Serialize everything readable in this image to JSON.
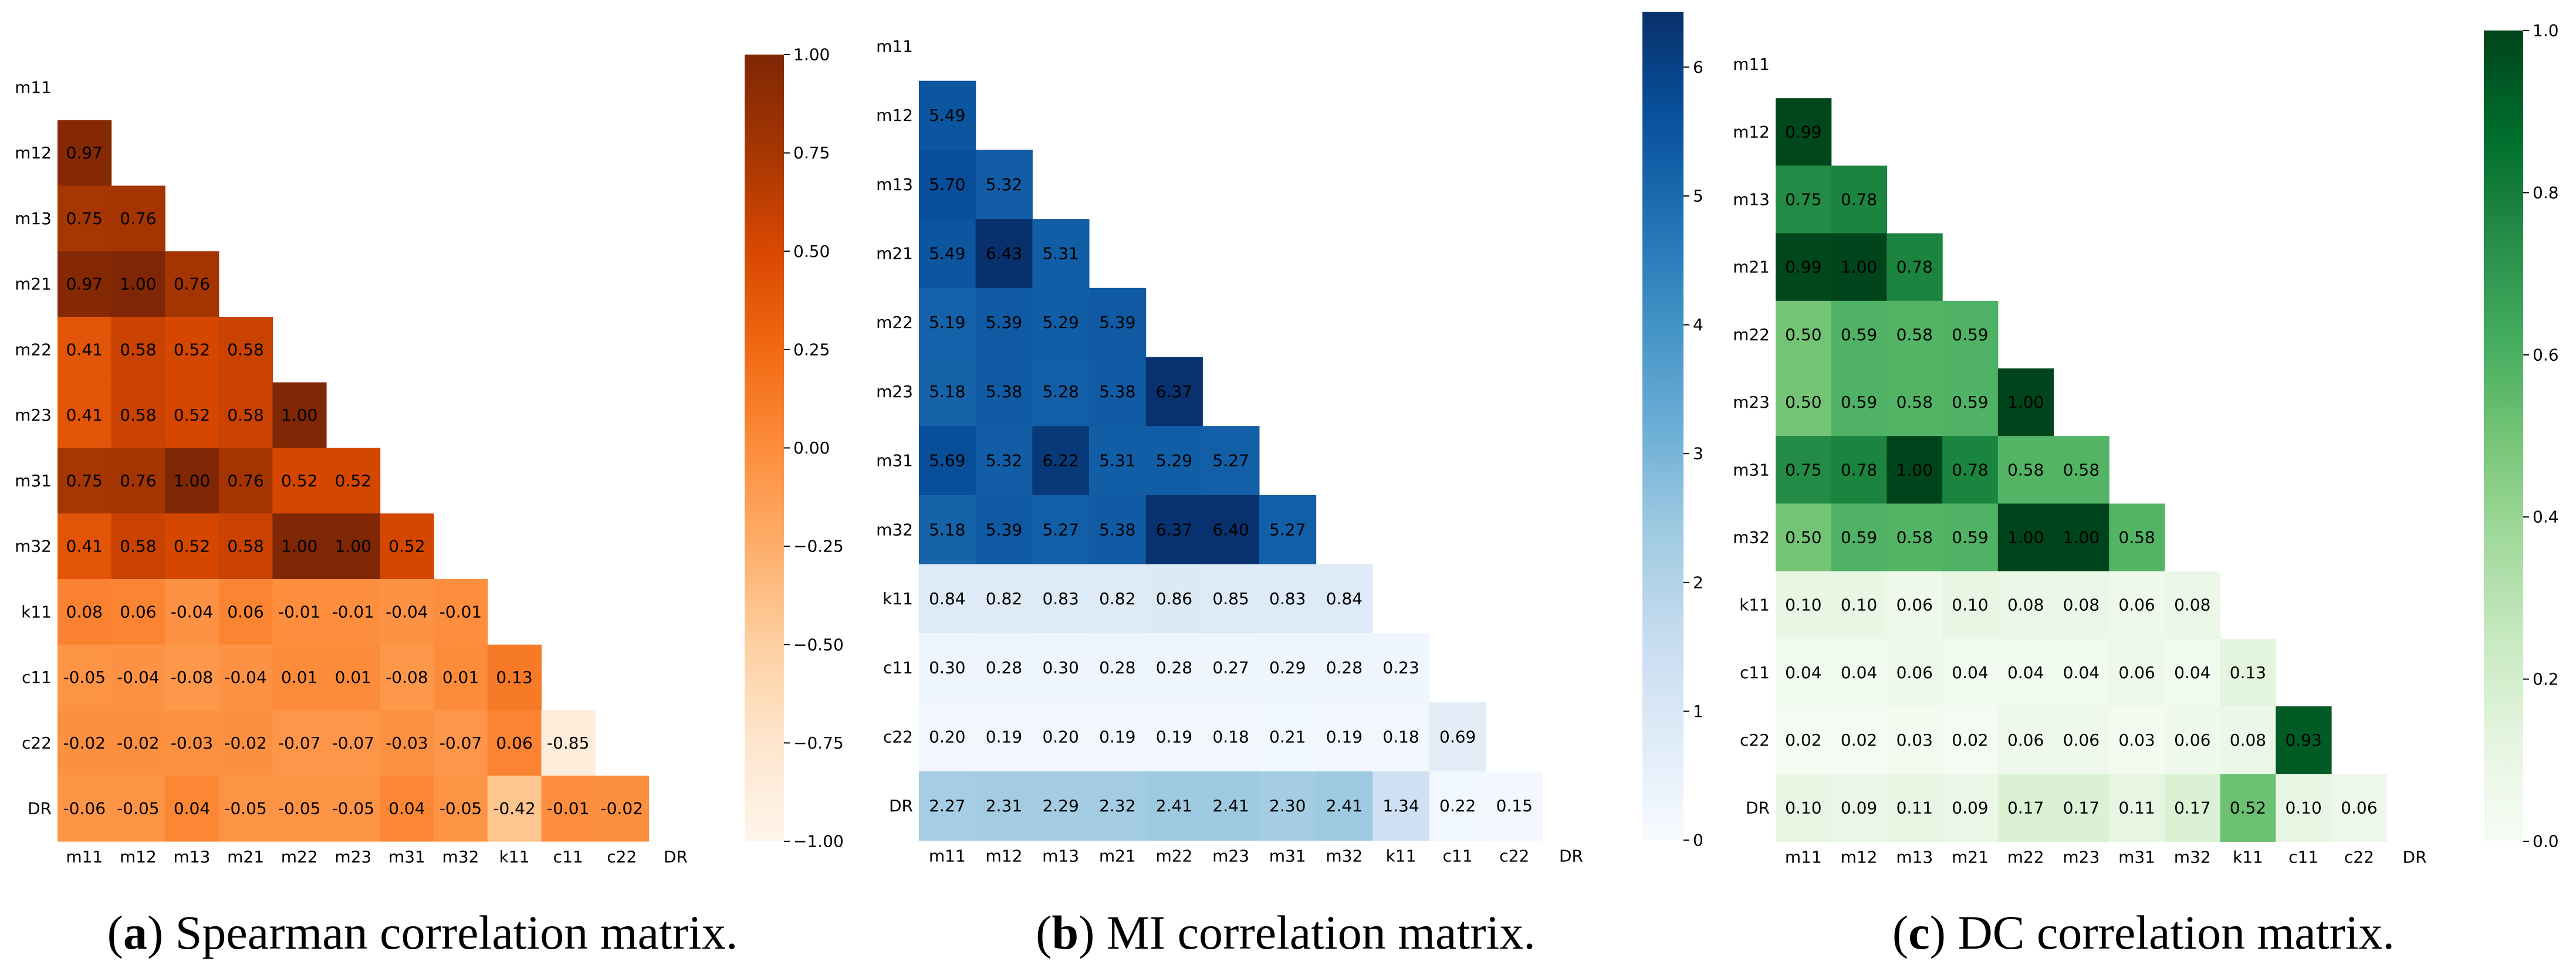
{
  "chart_data": [
    {
      "type": "heatmap",
      "labels": [
        "m11",
        "m12",
        "m13",
        "m21",
        "m22",
        "m23",
        "m31",
        "m32",
        "k11",
        "c11",
        "c22",
        "DR"
      ],
      "values": [
        [],
        [
          0.97
        ],
        [
          0.75,
          0.76
        ],
        [
          0.97,
          1.0,
          0.76
        ],
        [
          0.41,
          0.58,
          0.52,
          0.58
        ],
        [
          0.41,
          0.58,
          0.52,
          0.58,
          1.0
        ],
        [
          0.75,
          0.76,
          1.0,
          0.76,
          0.52,
          0.52
        ],
        [
          0.41,
          0.58,
          0.52,
          0.58,
          1.0,
          1.0,
          0.52
        ],
        [
          0.08,
          0.06,
          -0.04,
          0.06,
          -0.01,
          -0.01,
          -0.04,
          -0.01
        ],
        [
          -0.05,
          -0.04,
          -0.08,
          -0.04,
          0.01,
          0.01,
          -0.08,
          0.01,
          0.13
        ],
        [
          -0.02,
          -0.02,
          -0.03,
          -0.02,
          -0.07,
          -0.07,
          -0.03,
          -0.07,
          0.06,
          -0.85
        ],
        [
          -0.06,
          -0.05,
          0.04,
          -0.05,
          -0.05,
          -0.05,
          0.04,
          -0.05,
          -0.42,
          -0.01,
          -0.02
        ]
      ],
      "vmin": -1,
      "vmax": 1,
      "colormap": [
        "#fff5eb",
        "#fee6ce",
        "#fdd0a2",
        "#fdae6b",
        "#fd8d3c",
        "#f16913",
        "#d94801",
        "#a63603",
        "#7f2704"
      ],
      "colorbar": {
        "position": "right",
        "ticks": [
          1,
          0.75,
          0.5,
          0.25,
          0,
          -0.25,
          -0.5,
          -0.75,
          -1
        ],
        "tick_labels": [
          "1.00",
          "0.75",
          "0.50",
          "0.25",
          "0.00",
          "−0.25",
          "−0.50",
          "−0.75",
          "−1.00"
        ]
      },
      "caption": {
        "before": "(",
        "label": "a",
        "after": ") Spearman correlation matrix."
      }
    },
    {
      "type": "heatmap",
      "labels": [
        "m11",
        "m12",
        "m13",
        "m21",
        "m22",
        "m23",
        "m31",
        "m32",
        "k11",
        "c11",
        "c22",
        "DR"
      ],
      "values": [
        [],
        [
          5.49
        ],
        [
          5.7,
          5.32
        ],
        [
          5.49,
          6.43,
          5.31
        ],
        [
          5.19,
          5.39,
          5.29,
          5.39
        ],
        [
          5.18,
          5.38,
          5.28,
          5.38,
          6.37
        ],
        [
          5.69,
          5.32,
          6.22,
          5.31,
          5.29,
          5.27
        ],
        [
          5.18,
          5.39,
          5.27,
          5.38,
          6.37,
          6.4,
          5.27
        ],
        [
          0.84,
          0.82,
          0.83,
          0.82,
          0.86,
          0.85,
          0.83,
          0.84
        ],
        [
          0.3,
          0.28,
          0.3,
          0.28,
          0.28,
          0.27,
          0.29,
          0.28,
          0.23
        ],
        [
          0.2,
          0.19,
          0.2,
          0.19,
          0.19,
          0.18,
          0.21,
          0.19,
          0.18,
          0.69
        ],
        [
          2.27,
          2.31,
          2.29,
          2.32,
          2.41,
          2.41,
          2.3,
          2.41,
          1.34,
          0.22,
          0.15
        ]
      ],
      "vmin": 0,
      "vmax": 6.43,
      "colormap": [
        "#f7fbff",
        "#deebf7",
        "#c6dbef",
        "#9ecae1",
        "#6baed6",
        "#4292c6",
        "#2171b5",
        "#08519c",
        "#08306b"
      ],
      "colorbar": {
        "position": "right",
        "ticks": [
          6,
          5,
          4,
          3,
          2,
          1,
          0
        ],
        "tick_labels": [
          "6",
          "5",
          "4",
          "3",
          "2",
          "1",
          "0"
        ]
      },
      "caption": {
        "before": "(",
        "label": "b",
        "after": ") MI correlation matrix."
      }
    },
    {
      "type": "heatmap",
      "labels": [
        "m11",
        "m12",
        "m13",
        "m21",
        "m22",
        "m23",
        "m31",
        "m32",
        "k11",
        "c11",
        "c22",
        "DR"
      ],
      "values": [
        [],
        [
          0.99
        ],
        [
          0.75,
          0.78
        ],
        [
          0.99,
          1.0,
          0.78
        ],
        [
          0.5,
          0.59,
          0.58,
          0.59
        ],
        [
          0.5,
          0.59,
          0.58,
          0.59,
          1.0
        ],
        [
          0.75,
          0.78,
          1.0,
          0.78,
          0.58,
          0.58
        ],
        [
          0.5,
          0.59,
          0.58,
          0.59,
          1.0,
          1.0,
          0.58
        ],
        [
          0.1,
          0.1,
          0.06,
          0.1,
          0.08,
          0.08,
          0.06,
          0.08
        ],
        [
          0.04,
          0.04,
          0.06,
          0.04,
          0.04,
          0.04,
          0.06,
          0.04,
          0.13
        ],
        [
          0.02,
          0.02,
          0.03,
          0.02,
          0.06,
          0.06,
          0.03,
          0.06,
          0.08,
          0.93
        ],
        [
          0.1,
          0.09,
          0.11,
          0.09,
          0.17,
          0.17,
          0.11,
          0.17,
          0.52,
          0.1,
          0.06
        ]
      ],
      "vmin": 0,
      "vmax": 1,
      "colormap": [
        "#f7fcf5",
        "#e5f5e0",
        "#c7e9c0",
        "#a1d99b",
        "#74c476",
        "#41ab5d",
        "#238b45",
        "#006d2c",
        "#00441b"
      ],
      "colorbar": {
        "position": "right",
        "ticks": [
          1,
          0.8,
          0.6,
          0.4,
          0.2,
          0
        ],
        "tick_labels": [
          "1.0",
          "0.8",
          "0.6",
          "0.4",
          "0.2",
          "0.0"
        ]
      },
      "caption": {
        "before": "(",
        "label": "c",
        "after": ") DC correlation matrix."
      }
    }
  ]
}
